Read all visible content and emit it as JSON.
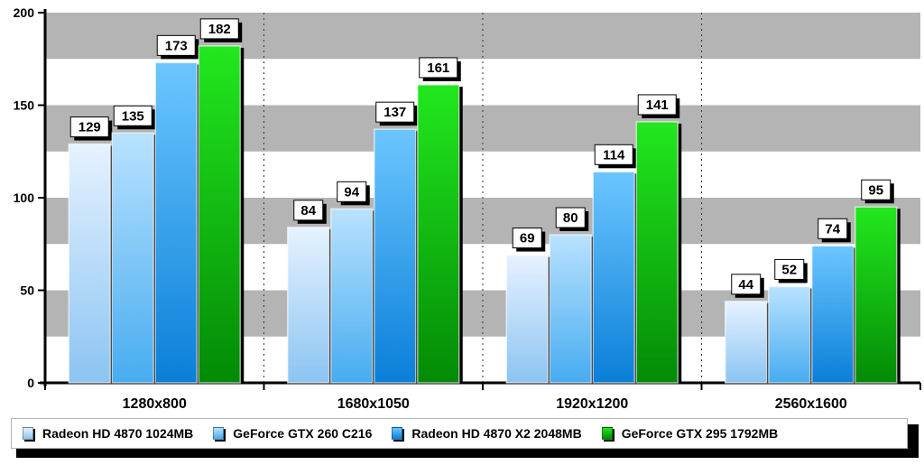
{
  "chart_data": {
    "type": "bar",
    "categories": [
      "1280x800",
      "1680x1050",
      "1920x1200",
      "2560x1600"
    ],
    "series": [
      {
        "name": "Radeon HD 4870 1024MB",
        "values": [
          129,
          84,
          69,
          44
        ],
        "color_top": "#e6f2ff",
        "color_bottom": "#8cc4f2"
      },
      {
        "name": "GeForce GTX 260 C216",
        "values": [
          135,
          94,
          80,
          52
        ],
        "color_top": "#b9e2ff",
        "color_bottom": "#47acf0"
      },
      {
        "name": "Radeon HD 4870 X2 2048MB",
        "values": [
          173,
          137,
          114,
          74
        ],
        "color_top": "#6cc6ff",
        "color_bottom": "#0a7fd8"
      },
      {
        "name": "GeForce GTX 295 1792MB",
        "values": [
          182,
          161,
          141,
          95
        ],
        "color_top": "#22e81e",
        "color_bottom": "#038a06"
      }
    ],
    "ylim": [
      0,
      200
    ],
    "yticks": [
      0,
      50,
      100,
      150,
      200
    ],
    "grid": "alternating grey bands every 25",
    "legend_placement": "bottom"
  }
}
